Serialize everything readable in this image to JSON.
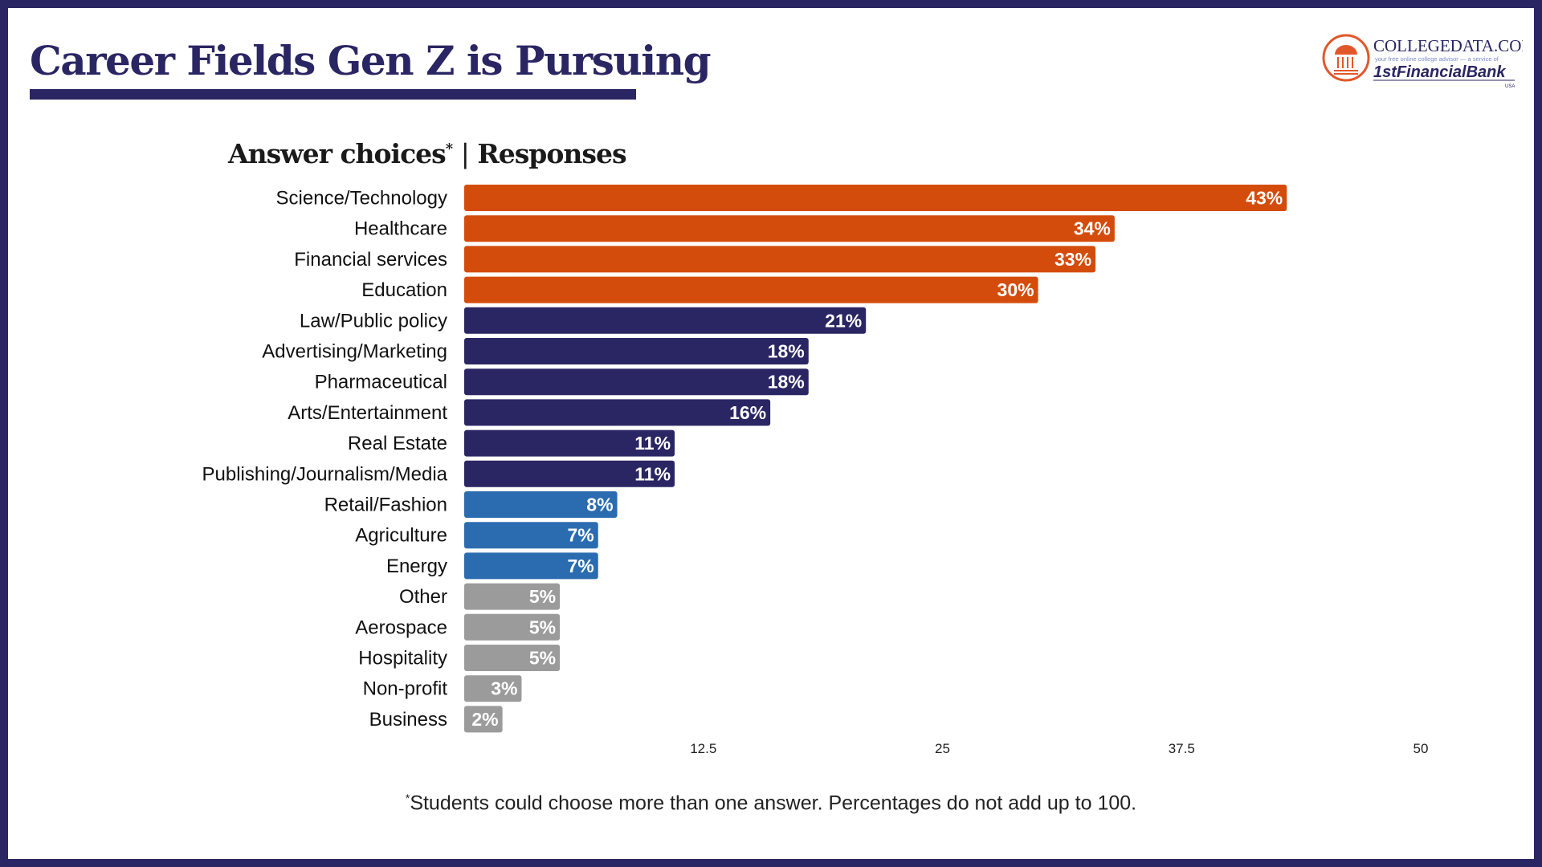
{
  "title": "Career Fields Gen Z is Pursuing",
  "header": {
    "answer_label": "Answer choices",
    "asterisk": "*",
    "separator": "|",
    "responses_label": "Responses"
  },
  "logo": {
    "brand": "CollegeData.com",
    "tagline": "your free online college advisor — a service of",
    "bank": "1stFinancialBank",
    "bank_sub": "USA"
  },
  "footnote": {
    "asterisk": "*",
    "text": "Students could choose more than one answer. Percentages do not add up to 100."
  },
  "colors": {
    "frame": "#2a2663",
    "orange": "#d44c0b",
    "navy": "#2a2663",
    "blue": "#2b6cb0",
    "gray": "#9b9b9b"
  },
  "chart_data": {
    "type": "bar",
    "orientation": "horizontal",
    "categories": [
      "Science/Technology",
      "Healthcare",
      "Financial services",
      "Education",
      "Law/Public policy",
      "Advertising/Marketing",
      "Pharmaceutical",
      "Arts/Entertainment",
      "Real Estate",
      "Publishing/Journalism/Media",
      "Retail/Fashion",
      "Agriculture",
      "Energy",
      "Other",
      "Aerospace",
      "Hospitality",
      "Non-profit",
      "Business"
    ],
    "values": [
      43,
      34,
      33,
      30,
      21,
      18,
      18,
      16,
      11,
      11,
      8,
      7,
      7,
      5,
      5,
      5,
      3,
      2
    ],
    "labels": [
      "43%",
      "34%",
      "33%",
      "30%",
      "21%",
      "18%",
      "18%",
      "16%",
      "11%",
      "11%",
      "8%",
      "7%",
      "7%",
      "5%",
      "5%",
      "5%",
      "3%",
      "2%"
    ],
    "bar_colors": [
      "#d44c0b",
      "#d44c0b",
      "#d44c0b",
      "#d44c0b",
      "#2a2663",
      "#2a2663",
      "#2a2663",
      "#2a2663",
      "#2a2663",
      "#2a2663",
      "#2b6cb0",
      "#2b6cb0",
      "#2b6cb0",
      "#9b9b9b",
      "#9b9b9b",
      "#9b9b9b",
      "#9b9b9b",
      "#9b9b9b"
    ],
    "xlim": [
      0,
      50
    ],
    "xticks": [
      12.5,
      25,
      37.5,
      50
    ],
    "xtick_labels": [
      "12.5",
      "25",
      "37.5",
      "50"
    ],
    "grid": false,
    "legend": "none"
  }
}
